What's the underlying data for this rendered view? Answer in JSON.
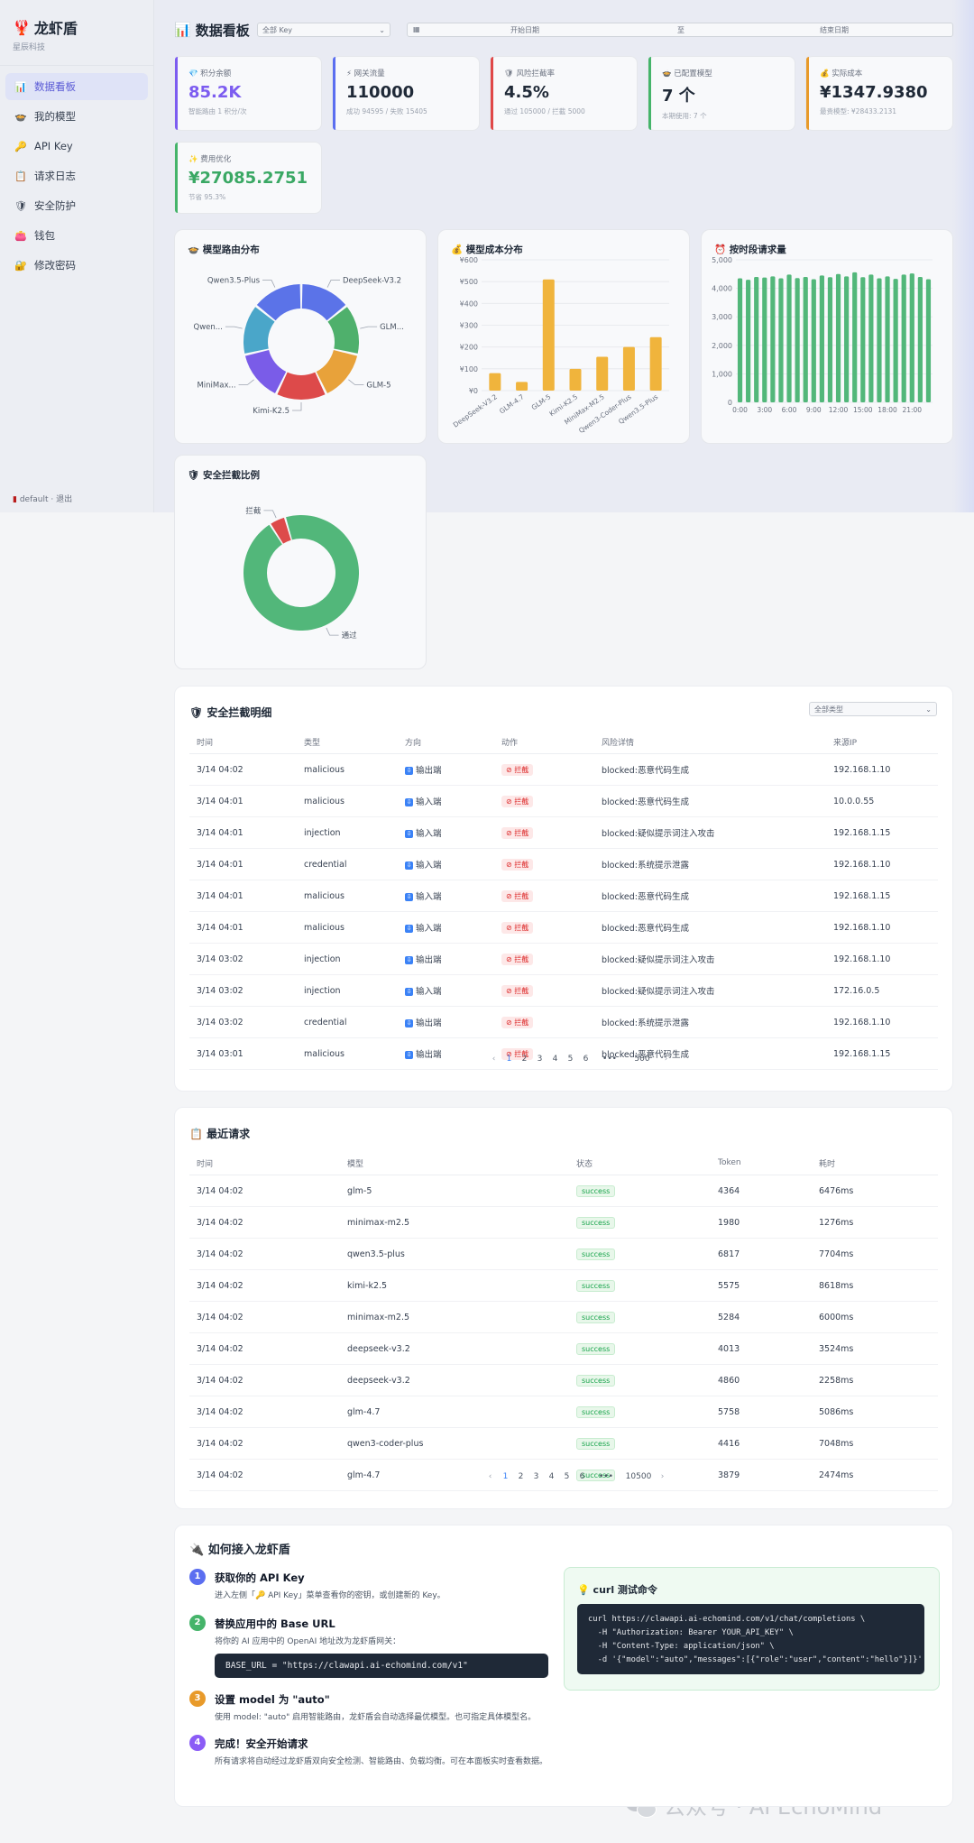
{
  "app": {
    "logo_icon": "lobster-icon",
    "name": "龙虾盾",
    "company": "星辰科技"
  },
  "sidebar": {
    "items": [
      {
        "label": "数据看板",
        "icon": "chart-icon",
        "active": true
      },
      {
        "label": "我的模型",
        "icon": "model-icon",
        "active": false
      },
      {
        "label": "API Key",
        "icon": "key-icon",
        "active": false
      },
      {
        "label": "请求日志",
        "icon": "log-icon",
        "active": false
      },
      {
        "label": "安全防护",
        "icon": "shield-icon",
        "active": false
      },
      {
        "label": "钱包",
        "icon": "wallet-icon",
        "active": false
      },
      {
        "label": "修改密码",
        "icon": "lock-icon",
        "active": false
      }
    ],
    "footer": "default · 退出"
  },
  "header": {
    "title": "数据看板",
    "key_select": "全部 Key",
    "start_date": "开始日期",
    "separator": "至",
    "end_date": "结束日期"
  },
  "kpis": [
    {
      "label": "积分余额",
      "value": "85.2K",
      "sub": "智能路由 1 积分/次",
      "color": "#7c5cf0",
      "icon": "gem-icon"
    },
    {
      "label": "网关流量",
      "value": "110000",
      "sub": "成功 94595 / 失败 15405",
      "color": "#5b6ef0",
      "icon": "bolt-icon"
    },
    {
      "label": "风险拦截率",
      "value": "4.5%",
      "sub": "通过 105000 / 拦截 5000",
      "color": "#e04848",
      "icon": "shield-icon"
    },
    {
      "label": "已配置模型",
      "value": "7 个",
      "sub": "本期使用: 7 个",
      "color": "#45b46a",
      "icon": "model-icon"
    },
    {
      "label": "实际成本",
      "value": "¥1347.9380",
      "sub": "最贵模型: ¥28433.2131",
      "color": "#e89a2a",
      "icon": "money-icon"
    },
    {
      "label": "费用优化",
      "value": "¥27085.2751",
      "sub": "节省 95.3%",
      "color": "#45b46a",
      "icon": "sparkle-icon",
      "value_color": "#3aa864"
    }
  ],
  "charts": {
    "routing_title": "模型路由分布",
    "cost_title": "模型成本分布",
    "hourly_title": "按时段请求量",
    "security_title": "安全拦截比例"
  },
  "chart_data": [
    {
      "type": "pie",
      "title": "模型路由分布",
      "labels": [
        "DeepSeek-V3.2",
        "GLM...",
        "GLM-5",
        "Kimi-K2.5",
        "MiniMax...",
        "Qwen...",
        "Qwen3.5-Plus"
      ],
      "values": [
        14.3,
        14.3,
        14.3,
        14.3,
        14.3,
        14.3,
        14.3
      ],
      "colors": [
        "#5b73e8",
        "#4fb06c",
        "#e8a23a",
        "#dd4a4a",
        "#7a5ce8",
        "#4aa6c9",
        "#5b73e8"
      ]
    },
    {
      "type": "bar",
      "title": "模型成本分布",
      "categories": [
        "DeepSeek-V3.2",
        "GLM-4.7",
        "GLM-5",
        "Kimi-K2.5",
        "MiniMax-M2.5",
        "Qwen3-Coder-Plus",
        "Qwen3.5-Plus"
      ],
      "values": [
        80,
        40,
        510,
        100,
        155,
        200,
        245
      ],
      "ylim": [
        0,
        600
      ],
      "yticks": [
        "¥0",
        "¥100",
        "¥200",
        "¥300",
        "¥400",
        "¥500",
        "¥600"
      ],
      "color": "#f0b43c"
    },
    {
      "type": "bar",
      "title": "按时段请求量",
      "categories": [
        "0:00",
        "1:00",
        "2:00",
        "3:00",
        "4:00",
        "5:00",
        "6:00",
        "7:00",
        "8:00",
        "9:00",
        "10:00",
        "11:00",
        "12:00",
        "13:00",
        "14:00",
        "15:00",
        "16:00",
        "17:00",
        "18:00",
        "19:00",
        "20:00",
        "21:00",
        "22:00",
        "23:00"
      ],
      "values": [
        4350,
        4300,
        4400,
        4380,
        4420,
        4350,
        4480,
        4360,
        4400,
        4320,
        4450,
        4390,
        4500,
        4420,
        4560,
        4390,
        4480,
        4350,
        4420,
        4330,
        4480,
        4520,
        4400,
        4320
      ],
      "ylim": [
        0,
        5000
      ],
      "yticks": [
        "0",
        "1,000",
        "2,000",
        "3,000",
        "4,000",
        "5,000"
      ],
      "xticks": [
        "0:00",
        "3:00",
        "6:00",
        "9:00",
        "12:00",
        "15:00",
        "18:00",
        "21:00"
      ],
      "color": "#52b77a"
    },
    {
      "type": "pie",
      "title": "安全拦截比例",
      "labels": [
        "通过",
        "拦截"
      ],
      "values": [
        105000,
        5000
      ],
      "colors": [
        "#52b77a",
        "#dd4a4a"
      ]
    }
  ],
  "security_table": {
    "title": "安全拦截明细",
    "filter": "全部类型",
    "columns": [
      "时间",
      "类型",
      "方向",
      "动作",
      "风险详情",
      "来源IP"
    ],
    "rows": [
      [
        "3/14 04:02",
        "malicious",
        "输出端",
        "拦截",
        "blocked:恶意代码生成",
        "192.168.1.10"
      ],
      [
        "3/14 04:01",
        "malicious",
        "输入端",
        "拦截",
        "blocked:恶意代码生成",
        "10.0.0.55"
      ],
      [
        "3/14 04:01",
        "injection",
        "输入端",
        "拦截",
        "blocked:疑似提示词注入攻击",
        "192.168.1.15"
      ],
      [
        "3/14 04:01",
        "credential",
        "输入端",
        "拦截",
        "blocked:系统提示泄露",
        "192.168.1.10"
      ],
      [
        "3/14 04:01",
        "malicious",
        "输入端",
        "拦截",
        "blocked:恶意代码生成",
        "192.168.1.15"
      ],
      [
        "3/14 04:01",
        "malicious",
        "输入端",
        "拦截",
        "blocked:恶意代码生成",
        "192.168.1.10"
      ],
      [
        "3/14 03:02",
        "injection",
        "输出端",
        "拦截",
        "blocked:疑似提示词注入攻击",
        "192.168.1.10"
      ],
      [
        "3/14 03:02",
        "injection",
        "输入端",
        "拦截",
        "blocked:疑似提示词注入攻击",
        "172.16.0.5"
      ],
      [
        "3/14 03:02",
        "credential",
        "输出端",
        "拦截",
        "blocked:系统提示泄露",
        "192.168.1.10"
      ],
      [
        "3/14 03:01",
        "malicious",
        "输出端",
        "拦截",
        "blocked:恶意代码生成",
        "192.168.1.15"
      ]
    ],
    "pagination": [
      "1",
      "2",
      "3",
      "4",
      "5",
      "6",
      "•••",
      "500"
    ]
  },
  "requests_table": {
    "title": "最近请求",
    "columns": [
      "时间",
      "模型",
      "状态",
      "Token",
      "耗时"
    ],
    "rows": [
      [
        "3/14 04:02",
        "glm-5",
        "success",
        "4364",
        "6476ms"
      ],
      [
        "3/14 04:02",
        "minimax-m2.5",
        "success",
        "1980",
        "1276ms"
      ],
      [
        "3/14 04:02",
        "qwen3.5-plus",
        "success",
        "6817",
        "7704ms"
      ],
      [
        "3/14 04:02",
        "kimi-k2.5",
        "success",
        "5575",
        "8618ms"
      ],
      [
        "3/14 04:02",
        "minimax-m2.5",
        "success",
        "5284",
        "6000ms"
      ],
      [
        "3/14 04:02",
        "deepseek-v3.2",
        "success",
        "4013",
        "3524ms"
      ],
      [
        "3/14 04:02",
        "deepseek-v3.2",
        "success",
        "4860",
        "2258ms"
      ],
      [
        "3/14 04:02",
        "glm-4.7",
        "success",
        "5758",
        "5086ms"
      ],
      [
        "3/14 04:02",
        "qwen3-coder-plus",
        "success",
        "4416",
        "7048ms"
      ],
      [
        "3/14 04:02",
        "glm-4.7",
        "success",
        "3879",
        "2474ms"
      ]
    ],
    "pagination": [
      "1",
      "2",
      "3",
      "4",
      "5",
      "6",
      "•••",
      "10500"
    ]
  },
  "guide": {
    "title": "如何接入龙虾盾",
    "steps": [
      {
        "num": "1",
        "title": "获取你的 API Key",
        "desc": "进入左侧「🔑 API Key」菜单查看你的密钥，或创建新的 Key。",
        "color": "#5b6ef0"
      },
      {
        "num": "2",
        "title": "替换应用中的 Base URL",
        "desc": "将你的 AI 应用中的 OpenAI 地址改为龙虾盾网关：",
        "color": "#45b46a"
      },
      {
        "num": "3",
        "title": "设置 model 为 \"auto\"",
        "desc": "使用 model: \"auto\" 启用智能路由，龙虾盾会自动选择最优模型。也可指定具体模型名。",
        "color": "#e89a2a"
      },
      {
        "num": "4",
        "title": "完成！安全开始请求",
        "desc": "所有请求将自动经过龙虾盾双向安全检测、智能路由、负载均衡。可在本面板实时查看数据。",
        "color": "#8b5cf6"
      }
    ],
    "base_url_code": "BASE_URL = \"https://clawapi.ai-echomind.com/v1\"",
    "curl_title": "curl 测试命令",
    "curl_lines": [
      "curl https://clawapi.ai-echomind.com/v1/chat/completions \\",
      "  -H \"Authorization: Bearer YOUR_API_KEY\" \\",
      "  -H \"Content-Type: application/json\" \\",
      "  -d '{\"model\":\"auto\",\"messages\":[{\"role\":\"user\",\"content\":\"hello\"}]}'"
    ]
  },
  "watermark": {
    "text": "公众号 · AI EchoMind",
    "icon": "wechat-icon"
  }
}
